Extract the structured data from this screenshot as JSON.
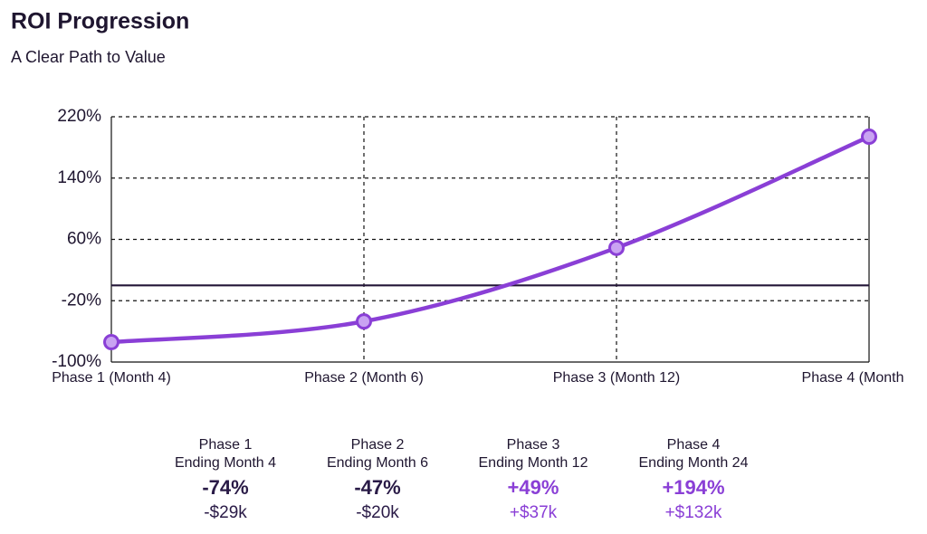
{
  "chart_data": {
    "type": "line",
    "title": "ROI Progression",
    "subtitle": "A Clear Path to Value",
    "categories": [
      "Phase 1 (Month 4)",
      "Phase 2 (Month 6)",
      "Phase 3 (Month 12)",
      "Phase 4 (Month"
    ],
    "series": [
      {
        "name": "ROI",
        "color": "#8a3fd6",
        "values": [
          -74,
          -47,
          49,
          194
        ]
      }
    ],
    "ylim": [
      -100,
      220
    ],
    "yticks": [
      {
        "value": -100,
        "label": "-100%"
      },
      {
        "value": -20,
        "label": "-20%"
      },
      {
        "value": 60,
        "label": "60%"
      },
      {
        "value": 140,
        "label": "140%"
      },
      {
        "value": 220,
        "label": "220%"
      }
    ],
    "grid": true,
    "reference_line": 0
  },
  "summary": [
    {
      "phase": "Phase 1",
      "ending": "Ending Month 4",
      "roi": "-74%",
      "gain": "-$29k",
      "color": "#2a1b47"
    },
    {
      "phase": "Phase 2",
      "ending": "Ending Month 6",
      "roi": "-47%",
      "gain": "-$20k",
      "color": "#2a1b47"
    },
    {
      "phase": "Phase 3",
      "ending": "Ending Month 12",
      "roi": "+49%",
      "gain": "+$37k",
      "color": "#8a3fd6"
    },
    {
      "phase": "Phase 4",
      "ending": "Ending Month 24",
      "roi": "+194%",
      "gain": "+$132k",
      "color": "#8a3fd6"
    }
  ]
}
